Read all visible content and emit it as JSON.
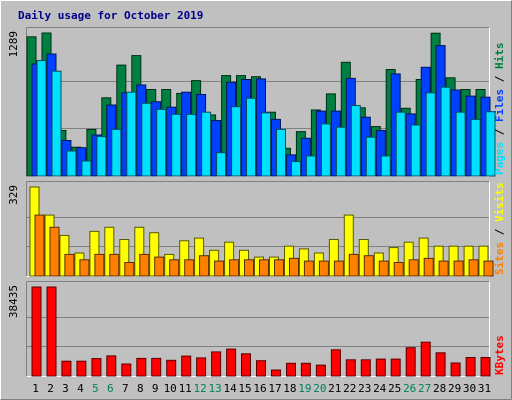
{
  "chart_data": {
    "type": "bar",
    "title": "Daily usage for October 2019",
    "x": [
      "1",
      "2",
      "3",
      "4",
      "5",
      "6",
      "7",
      "8",
      "9",
      "10",
      "11",
      "12",
      "13",
      "14",
      "15",
      "16",
      "17",
      "18",
      "19",
      "20",
      "21",
      "22",
      "23",
      "24",
      "25",
      "26",
      "27",
      "28",
      "29",
      "30",
      "31"
    ],
    "weekend_days": [
      "5",
      "6",
      "12",
      "13",
      "19",
      "20",
      "26",
      "27"
    ],
    "colors": {
      "hits": "#008040",
      "files": "#0040ff",
      "pages": "#00e0ff",
      "visits": "#ffff00",
      "sites": "#ff8000",
      "kbytes": "#ff0000",
      "weekday_label": "#000000",
      "weekend_label": "#00805c",
      "title": "#00008b"
    },
    "panels": [
      {
        "name": "hits-files-pages",
        "ymax_label": "1289",
        "ylim": [
          0,
          1289
        ],
        "legend": [
          {
            "text": "Pages",
            "color": "#00e0ff"
          },
          {
            "text": " / ",
            "color": "#000000"
          },
          {
            "text": "Files",
            "color": "#0040ff"
          },
          {
            "text": " / ",
            "color": "#000000"
          },
          {
            "text": "Hits",
            "color": "#008040"
          }
        ],
        "series": [
          {
            "name": "Hits",
            "color": "#008040",
            "values": [
              1255,
              1289,
              410,
              260,
              420,
              705,
              1000,
              1085,
              780,
              780,
              745,
              860,
              550,
              905,
              905,
              895,
              575,
              250,
              400,
              595,
              740,
              1025,
              615,
              445,
              960,
              610,
              870,
              1287,
              885,
              780,
              780
            ]
          },
          {
            "name": "Files",
            "color": "#0040ff",
            "values": [
              1010,
              1100,
              320,
              255,
              370,
              640,
              750,
              820,
              670,
              620,
              755,
              735,
              500,
              845,
              870,
              875,
              510,
              190,
              340,
              585,
              585,
              880,
              530,
              410,
              920,
              560,
              980,
              1175,
              775,
              720,
              710
            ]
          },
          {
            "name": "Pages",
            "color": "#00e0ff",
            "values": [
              1040,
              945,
              225,
              135,
              355,
              420,
              755,
              655,
              600,
              555,
              555,
              575,
              210,
              625,
              700,
              570,
              420,
              130,
              180,
              470,
              440,
              635,
              350,
              180,
              575,
              460,
              750,
              800,
              575,
              510,
              580
            ]
          }
        ]
      },
      {
        "name": "visits-sites",
        "ymax_label": "329",
        "ylim": [
          0,
          329
        ],
        "legend": [
          {
            "text": "Sites",
            "color": "#ff8000"
          },
          {
            "text": " / ",
            "color": "#000000"
          },
          {
            "text": "Visits",
            "color": "#ffff00"
          }
        ],
        "series": [
          {
            "name": "Visits",
            "color": "#ffff00",
            "values": [
              329,
              225,
              150,
              85,
              165,
              180,
              135,
              180,
              160,
              80,
              130,
              140,
              95,
              125,
              95,
              70,
              70,
              110,
              100,
              85,
              135,
              225,
              135,
              85,
              105,
              125,
              140,
              110,
              110,
              110,
              110
            ]
          },
          {
            "name": "Sites",
            "color": "#ff8000",
            "values": [
              225,
              180,
              80,
              60,
              80,
              80,
              50,
              80,
              70,
              60,
              60,
              75,
              55,
              60,
              60,
              60,
              60,
              65,
              55,
              55,
              55,
              80,
              75,
              55,
              50,
              60,
              65,
              55,
              55,
              60,
              55
            ]
          }
        ]
      },
      {
        "name": "kbytes",
        "ymax_label": "38435",
        "ylim": [
          0,
          38435
        ],
        "legend": [
          {
            "text": "KBytes",
            "color": "#ff0000"
          }
        ],
        "series": [
          {
            "name": "KBytes",
            "color": "#ff0000",
            "values": [
              38435,
              38435,
              6400,
              6400,
              7500,
              8700,
              5200,
              7600,
              7600,
              6800,
              8600,
              7800,
              10400,
              11600,
              9600,
              6600,
              2600,
              5500,
              5500,
              4700,
              11300,
              7000,
              7000,
              7300,
              7300,
              12200,
              14600,
              10000,
              5600,
              8000,
              8000
            ]
          }
        ]
      }
    ]
  }
}
